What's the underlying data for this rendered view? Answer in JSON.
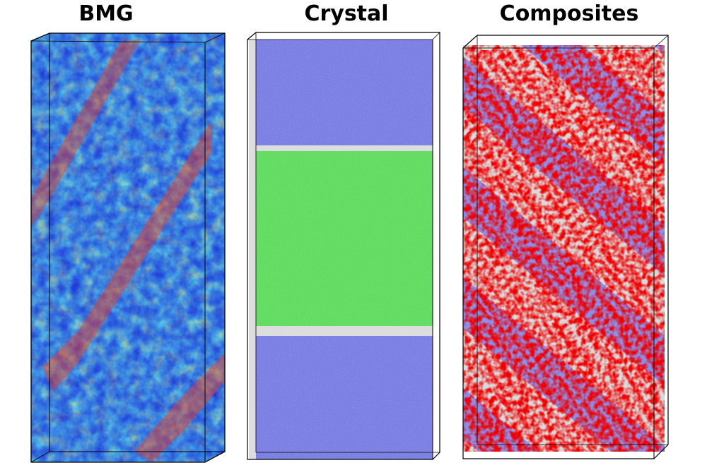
{
  "panels": [
    {
      "title": "BMG"
    },
    {
      "title": "Crystal"
    },
    {
      "title": "Composites"
    }
  ],
  "colors": {
    "bmg_base": "#1a2fd6",
    "bmg_mid": "#1ab8d0",
    "bmg_green": "#6ad64a",
    "bmg_hot": "#e01010",
    "crystal_fcc": "#6b70e0",
    "crystal_green": "#4fd84f",
    "crystal_gray": "#d8d8d8",
    "comp_red": "#e00000",
    "comp_blue": "#7a80e8",
    "comp_gray": "#d4d4d4"
  }
}
